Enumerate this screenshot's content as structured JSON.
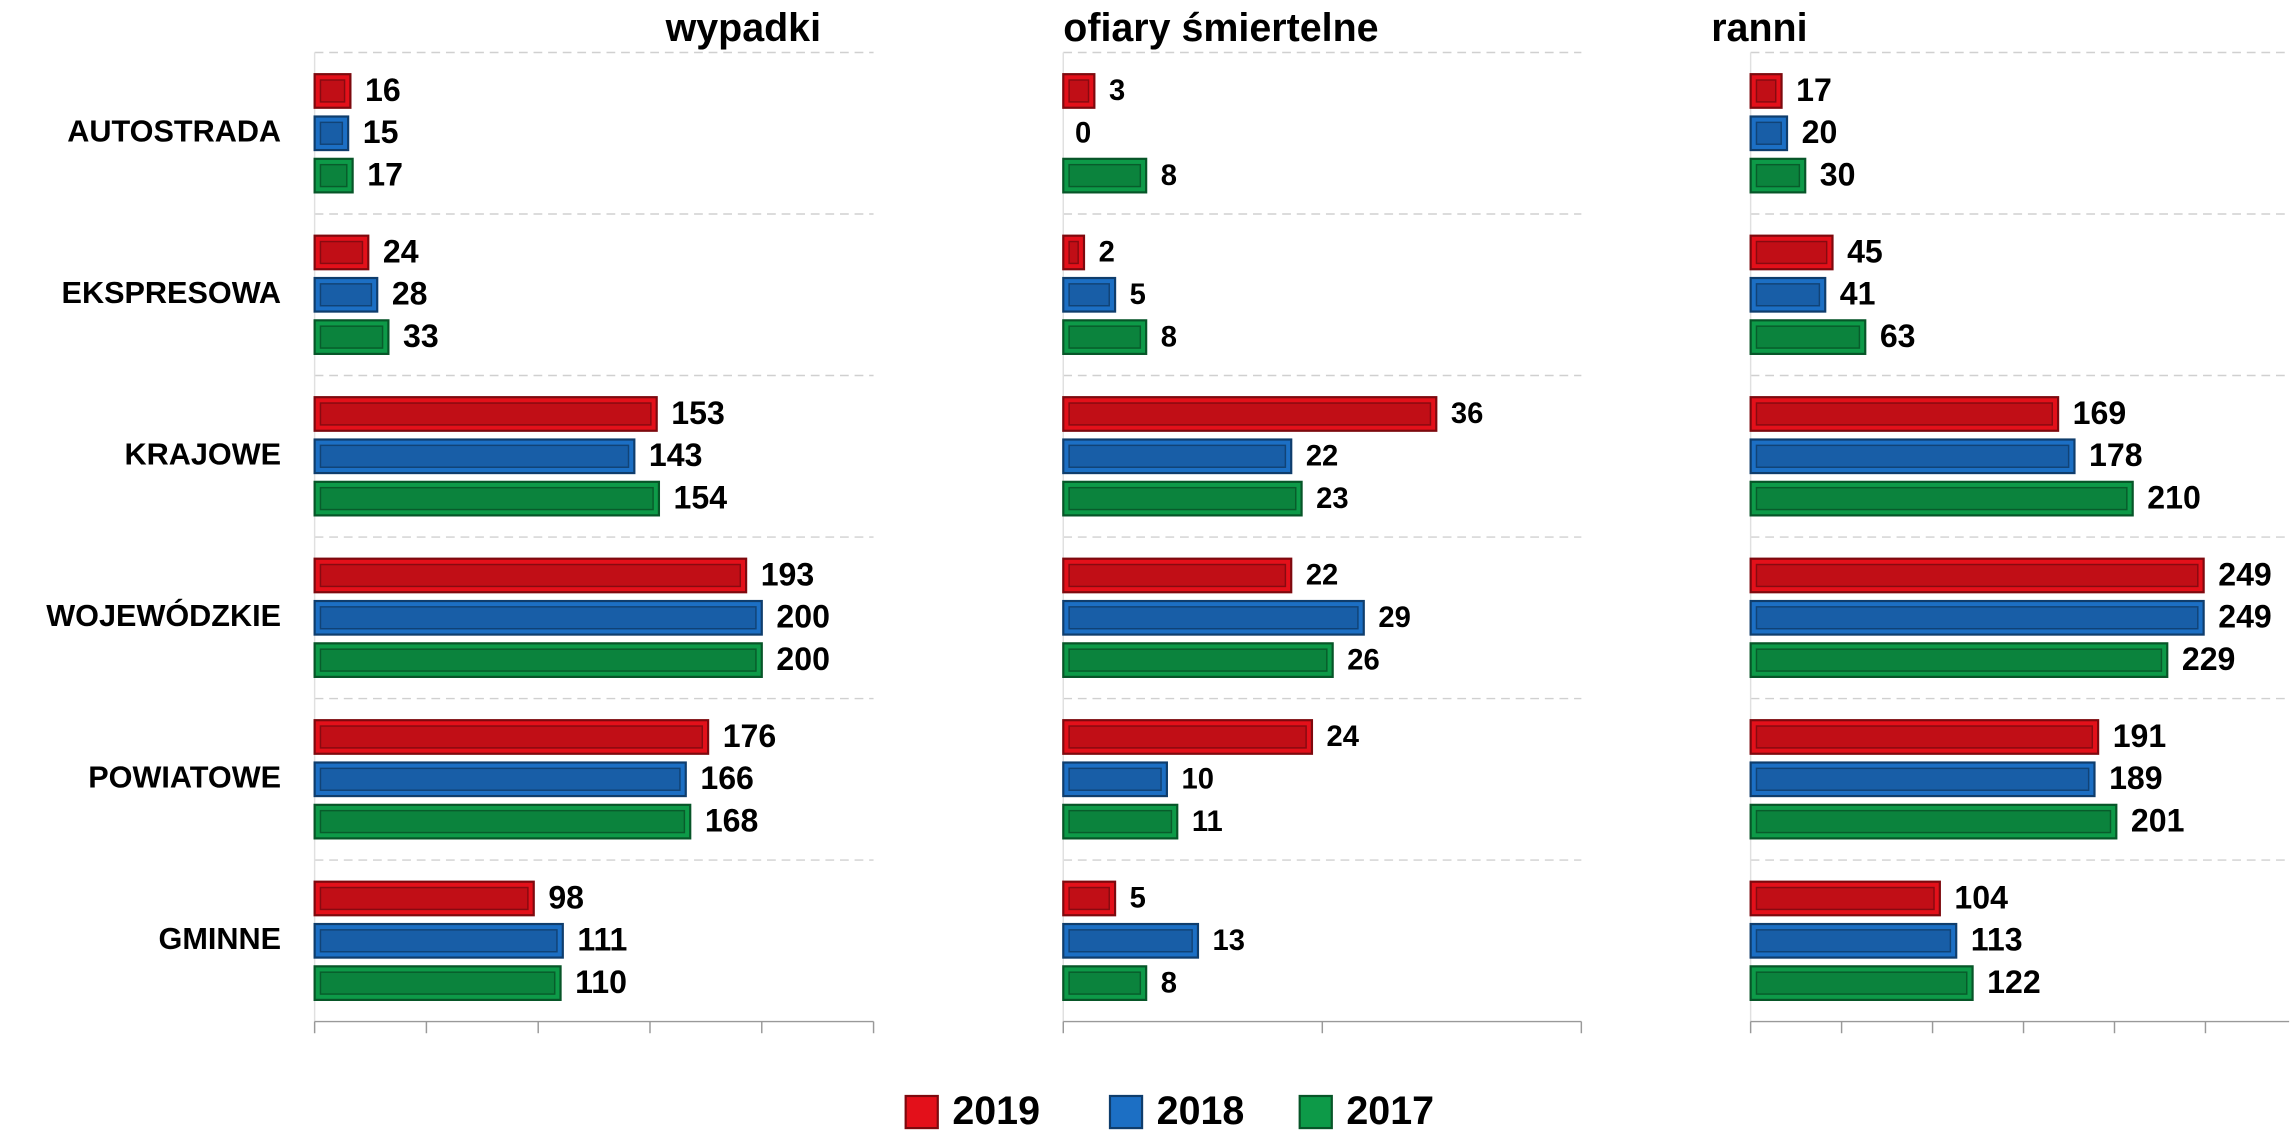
{
  "chart_data": [
    {
      "type": "bar",
      "orientation": "horizontal",
      "title": "wypadki",
      "categories": [
        "AUTOSTRADA",
        "EKSPRESOWA",
        "KRAJOWE",
        "WOJEWÓDZKIE",
        "POWIATOWE",
        "GMINNE"
      ],
      "series": [
        {
          "name": "2019",
          "color": "#e3101a",
          "values": [
            16,
            24,
            153,
            193,
            176,
            98
          ]
        },
        {
          "name": "2018",
          "color": "#1c6fc4",
          "values": [
            15,
            28,
            143,
            200,
            166,
            111
          ]
        },
        {
          "name": "2017",
          "color": "#0d9a48",
          "values": [
            17,
            33,
            154,
            200,
            168,
            110
          ]
        }
      ],
      "xlim": [
        0,
        250
      ],
      "xticks": [
        0,
        50,
        100,
        150,
        200,
        250
      ]
    },
    {
      "type": "bar",
      "orientation": "horizontal",
      "title": "ofiary śmiertelne",
      "series": [
        {
          "name": "2019",
          "color": "#e3101a",
          "values": [
            3,
            2,
            36,
            22,
            24,
            5
          ]
        },
        {
          "name": "2018",
          "color": "#1c6fc4",
          "values": [
            0,
            5,
            22,
            29,
            10,
            13
          ]
        },
        {
          "name": "2017",
          "color": "#0d9a48",
          "values": [
            8,
            8,
            23,
            26,
            11,
            8
          ]
        }
      ],
      "xlim": [
        0,
        50
      ],
      "xticks": [
        0,
        25,
        50
      ]
    },
    {
      "type": "bar",
      "orientation": "horizontal",
      "title": "ranni",
      "series": [
        {
          "name": "2019",
          "color": "#e3101a",
          "values": [
            17,
            45,
            169,
            249,
            191,
            104
          ]
        },
        {
          "name": "2018",
          "color": "#1c6fc4",
          "values": [
            20,
            41,
            178,
            249,
            189,
            113
          ]
        },
        {
          "name": "2017",
          "color": "#0d9a48",
          "values": [
            30,
            63,
            210,
            229,
            201,
            122
          ]
        }
      ],
      "xlim": [
        0,
        300
      ],
      "xticks": [
        0,
        50,
        100,
        150,
        200,
        250
      ]
    }
  ]
}
